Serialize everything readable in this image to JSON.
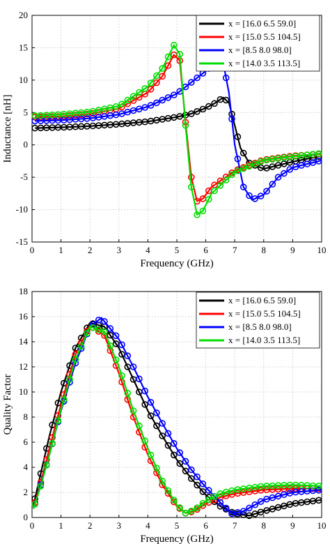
{
  "chart_data": [
    {
      "type": "line",
      "xlabel": "Frequency (GHz)",
      "ylabel": "Inductance [nH]",
      "xlim": [
        0,
        10
      ],
      "ylim": [
        -15,
        20
      ],
      "xticks": [
        "0",
        "1",
        "2",
        "3",
        "4",
        "5",
        "6",
        "7",
        "8",
        "9",
        "10"
      ],
      "yticks": [
        "20",
        "15",
        "10",
        "5",
        "0",
        "-5",
        "-10",
        "-15"
      ],
      "grid": true,
      "legend_position": "top-right",
      "markers": "circles = measured, lines = model",
      "series": [
        {
          "name": "x = [16.0 6.5 59.0]",
          "color": "#000000",
          "x": [
            0.1,
            1,
            2,
            3,
            4,
            5,
            5.5,
            6,
            6.3,
            6.6,
            6.8,
            7.0,
            7.2,
            7.5,
            8,
            9,
            10
          ],
          "y": [
            2.6,
            2.7,
            2.9,
            3.2,
            3.6,
            4.3,
            4.8,
            5.7,
            6.4,
            7.3,
            6.5,
            3.0,
            -0.5,
            -2.8,
            -3.7,
            -2.6,
            -1.7
          ]
        },
        {
          "name": "x = [15.0 5.5 104.5]",
          "color": "#ff0000",
          "x": [
            0.1,
            1,
            2,
            3,
            4,
            4.5,
            4.9,
            5.1,
            5.3,
            5.5,
            5.7,
            5.9,
            6.2,
            7,
            8,
            9,
            10
          ],
          "y": [
            4.3,
            4.4,
            4.8,
            5.6,
            8.1,
            10.6,
            13.9,
            13.0,
            3.5,
            -5.0,
            -8.7,
            -8.3,
            -6.5,
            -4.0,
            -2.3,
            -1.7,
            -1.4
          ]
        },
        {
          "name": "x = [8.5 8.0 98.0]",
          "color": "#0000ff",
          "x": [
            0.1,
            1,
            2,
            3,
            4,
            5,
            6,
            6.4,
            6.6,
            6.8,
            7.0,
            7.3,
            7.6,
            8,
            8.5,
            9,
            10
          ],
          "y": [
            3.7,
            3.8,
            4.1,
            4.7,
            5.9,
            7.9,
            11.4,
            13.0,
            12.7,
            8.0,
            0.0,
            -6.5,
            -8.5,
            -7.7,
            -5.0,
            -3.5,
            -2.4
          ]
        },
        {
          "name": "x = [14.0 3.5 113.5]",
          "color": "#00dd00",
          "x": [
            0.1,
            1,
            2,
            3,
            4,
            4.5,
            4.9,
            5.1,
            5.3,
            5.5,
            5.7,
            5.9,
            6.2,
            7,
            8,
            9,
            10
          ],
          "y": [
            4.5,
            4.7,
            5.1,
            6.0,
            9.0,
            11.8,
            15.4,
            14.0,
            3.0,
            -6.5,
            -10.8,
            -10.2,
            -7.5,
            -4.2,
            -2.4,
            -1.8,
            -1.3
          ]
        }
      ]
    },
    {
      "type": "line",
      "xlabel": "Frequency (GHz)",
      "ylabel": "Quality Factor",
      "xlim": [
        0,
        10
      ],
      "ylim": [
        0,
        18
      ],
      "xticks": [
        "0",
        "1",
        "2",
        "3",
        "4",
        "5",
        "6",
        "7",
        "8",
        "9",
        "10"
      ],
      "yticks": [
        "18",
        "16",
        "14",
        "12",
        "10",
        "8",
        "6",
        "4",
        "2",
        "0"
      ],
      "grid": true,
      "legend_position": "top-right",
      "markers": "circles = measured, lines = model",
      "series": [
        {
          "name": "x = [16.0 6.5 59.0]",
          "color": "#000000",
          "x": [
            0.05,
            0.3,
            0.6,
            1.0,
            1.5,
            2.0,
            2.5,
            3.0,
            3.5,
            4.0,
            4.5,
            5.0,
            5.5,
            6.0,
            6.5,
            7.0,
            7.5,
            8.0,
            9.0,
            10.0
          ],
          "y": [
            1.0,
            3.5,
            6.5,
            10.0,
            13.5,
            15.5,
            15.2,
            13.5,
            11.0,
            8.5,
            6.5,
            4.6,
            3.1,
            1.8,
            0.9,
            0.3,
            0.15,
            0.5,
            1.1,
            1.4
          ]
        },
        {
          "name": "x = [15.0 5.5 104.5]",
          "color": "#ff0000",
          "x": [
            0.05,
            0.3,
            0.6,
            1.0,
            1.5,
            2.0,
            2.5,
            3.0,
            3.5,
            4.0,
            4.5,
            5.0,
            5.3,
            5.6,
            6.0,
            6.5,
            7.0,
            8.0,
            9.0,
            10.0
          ],
          "y": [
            0.8,
            2.8,
            5.5,
            9.0,
            13.0,
            15.3,
            14.5,
            11.5,
            8.0,
            5.0,
            2.6,
            0.9,
            0.35,
            0.5,
            1.1,
            1.6,
            1.9,
            2.2,
            2.3,
            2.3
          ]
        },
        {
          "name": "x = [8.5 8.0 98.0]",
          "color": "#0000ff",
          "x": [
            0.05,
            0.3,
            0.6,
            1.0,
            1.5,
            2.0,
            2.4,
            3.0,
            3.5,
            4.0,
            4.5,
            5.0,
            5.5,
            6.0,
            6.5,
            6.9,
            7.3,
            8.0,
            9.0,
            10.0
          ],
          "y": [
            0.7,
            2.6,
            5.0,
            8.5,
            12.3,
            15.2,
            15.9,
            14.2,
            12.0,
            9.6,
            7.5,
            5.5,
            3.8,
            2.4,
            1.2,
            0.3,
            0.5,
            1.4,
            2.0,
            2.2
          ]
        },
        {
          "name": "x = [14.0 3.5 113.5]",
          "color": "#00dd00",
          "x": [
            0.05,
            0.3,
            0.6,
            1.0,
            1.5,
            2.0,
            2.5,
            3.0,
            3.5,
            4.0,
            4.5,
            5.0,
            5.3,
            5.6,
            6.0,
            6.5,
            7.0,
            8.0,
            9.0,
            10.0
          ],
          "y": [
            0.7,
            2.5,
            5.0,
            8.6,
            12.6,
            15.2,
            14.8,
            12.0,
            8.5,
            5.5,
            2.9,
            1.0,
            0.35,
            0.6,
            1.3,
            1.9,
            2.2,
            2.5,
            2.6,
            2.5
          ]
        }
      ]
    }
  ]
}
